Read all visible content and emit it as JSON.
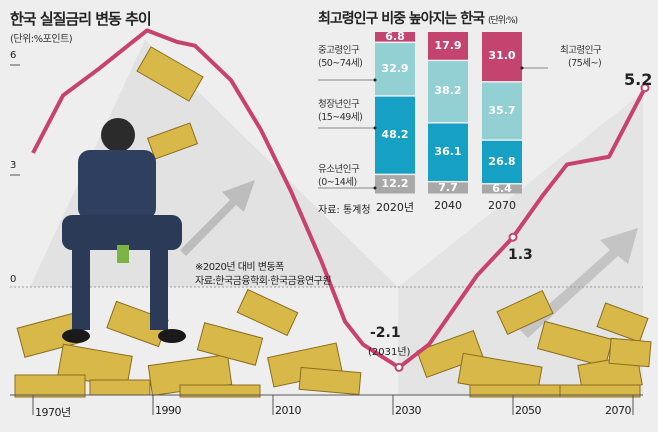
{
  "left_chart": {
    "title": "한국 실질금리 변동 추이",
    "unit": "(단위:%포인트)",
    "note": "※2020년 대비 변동폭",
    "source": "자료:한국금융학회·한국금융연구원",
    "min_label": "-2.1",
    "min_sublabel": "(2031년)",
    "mid_label": "1.3",
    "end_label": "5.2"
  },
  "right_chart": {
    "title": "최고령인구 비중 높아지는 한국",
    "unit": "(단위:%)",
    "source": "자료: 통계청",
    "groups": [
      {
        "name": "최고령인구",
        "age": "(75세~)"
      },
      {
        "name": "중고령인구",
        "age": "(50~74세)"
      },
      {
        "name": "청장년인구",
        "age": "(15~49세)"
      },
      {
        "name": "유소년인구",
        "age": "(0~14세)"
      }
    ]
  },
  "colors": {
    "line": "#c8426f",
    "oldest": "#c4446f",
    "middle": "#92d0d3",
    "young": "#16a0c4",
    "child": "#a8a8a8",
    "bg": "#eeeeee"
  },
  "chart_data": [
    {
      "type": "line",
      "title": "한국 실질금리 변동 추이",
      "ylabel": "%포인트",
      "xlim": [
        1970,
        2073
      ],
      "ylim": [
        -2.5,
        7
      ],
      "x_ticks": [
        "1970년",
        "1990",
        "2010",
        "2030",
        "2050",
        "2070"
      ],
      "y_ticks": [
        "6",
        "3",
        "0"
      ],
      "x": [
        1970,
        1975,
        1981,
        1989,
        1994,
        1997,
        2003,
        2008,
        2013,
        2018,
        2022,
        2025,
        2031,
        2036,
        2044,
        2050,
        2055,
        2059,
        2066,
        2072
      ],
      "values": [
        3.5,
        5.0,
        5.7,
        6.7,
        6.4,
        6.3,
        5.4,
        4.1,
        2.5,
        0.7,
        -0.9,
        -1.5,
        -2.1,
        -1.5,
        0.3,
        1.3,
        2.4,
        3.2,
        3.4,
        5.2
      ]
    },
    {
      "type": "bar",
      "stacked": true,
      "title": "최고령인구 비중 높아지는 한국",
      "categories": [
        "2020년",
        "2040",
        "2070"
      ],
      "series": [
        {
          "name": "유소년인구(0~14세)",
          "values": [
            "12.2",
            "7.7",
            "6.4"
          ]
        },
        {
          "name": "청장년인구(15~49세)",
          "values": [
            "48.2",
            "36.1",
            "26.8"
          ]
        },
        {
          "name": "중고령인구(50~74세)",
          "values": [
            "32.9",
            "38.2",
            "35.7"
          ]
        },
        {
          "name": "최고령인구(75세~)",
          "values": [
            "6.8",
            "17.9",
            "31.0"
          ]
        }
      ]
    }
  ]
}
